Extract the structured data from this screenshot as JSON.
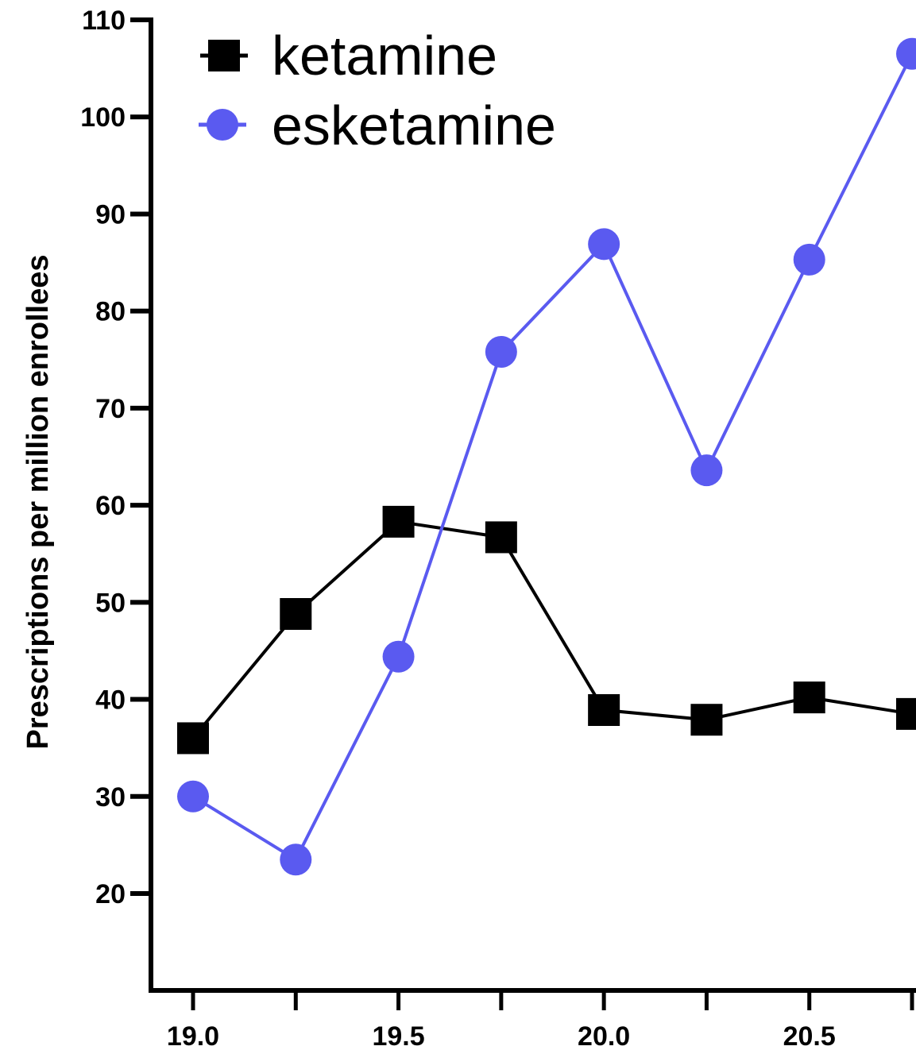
{
  "chart_data": {
    "type": "line",
    "title": "",
    "xlabel": "",
    "ylabel": "Prescriptions per million enrollees",
    "xlim": [
      18.9,
      20.75
    ],
    "ylim": [
      10,
      110
    ],
    "x_ticks": [
      19.0,
      19.25,
      19.5,
      19.75,
      20.0,
      20.25,
      20.5,
      20.75
    ],
    "x_tick_labels": [
      "19.0",
      "19.5",
      "20.0",
      "20.5"
    ],
    "x_tick_label_values": [
      19.0,
      19.5,
      20.0,
      20.5
    ],
    "y_ticks": [
      20,
      30,
      40,
      50,
      60,
      70,
      80,
      90,
      100,
      110
    ],
    "y_tick_labels": [
      "20",
      "30",
      "40",
      "50",
      "60",
      "70",
      "80",
      "90",
      "100",
      "110"
    ],
    "grid": false,
    "legend_position": "top-left",
    "series": [
      {
        "name": "ketamine",
        "marker": "square",
        "color": "#000000",
        "x": [
          19.0,
          19.25,
          19.5,
          19.75,
          20.0,
          20.25,
          20.5,
          20.75
        ],
        "values": [
          36,
          48.8,
          58.3,
          56.7,
          38.9,
          37.9,
          40.2,
          38.5
        ]
      },
      {
        "name": "esketamine",
        "marker": "circle",
        "color": "#5a5af0",
        "x": [
          19.0,
          19.25,
          19.5,
          19.75,
          20.0,
          20.25,
          20.5,
          20.75
        ],
        "values": [
          30,
          23.5,
          44.4,
          75.8,
          86.9,
          63.6,
          85.3,
          106.5
        ]
      }
    ]
  }
}
